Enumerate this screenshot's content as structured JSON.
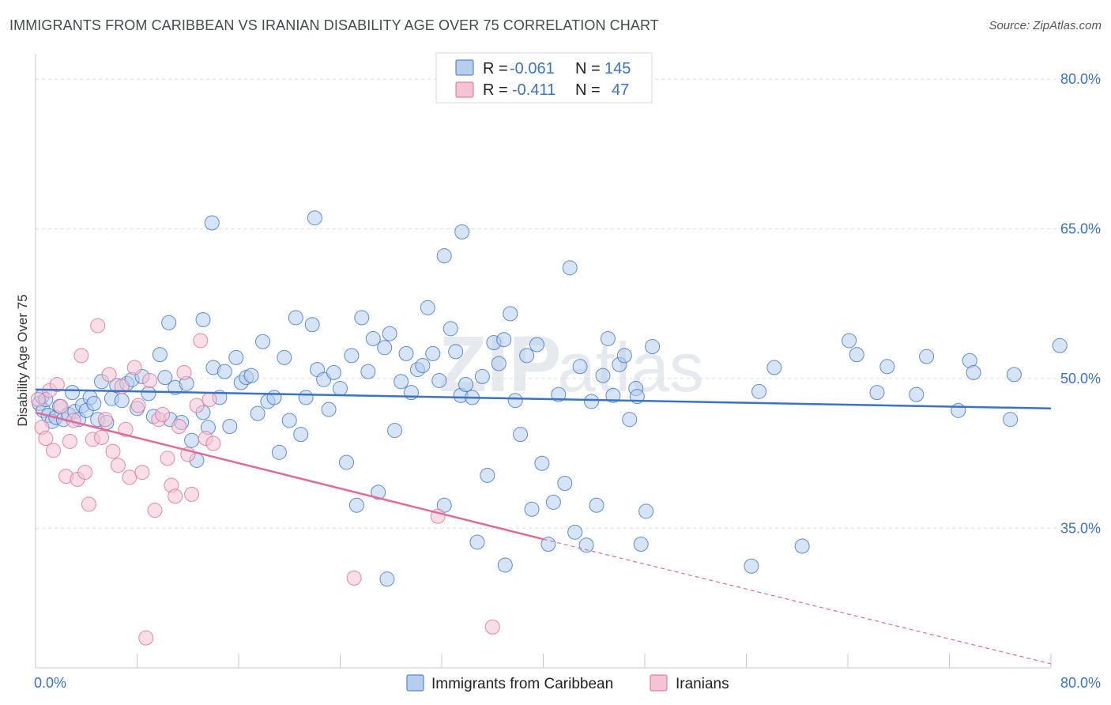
{
  "title": "IMMIGRANTS FROM CARIBBEAN VS IRANIAN DISABILITY AGE OVER 75 CORRELATION CHART",
  "source": "Source: ZipAtlas.com",
  "watermark": {
    "part1": "ZIP",
    "part2": "atlas"
  },
  "colors": {
    "blue": "#3b73c4",
    "pink": "#e06b97",
    "blue_fill": "#b7cdee",
    "pink_fill": "#f5c3d4",
    "grid": "#d9dde3"
  },
  "legend": {
    "rows": [
      {
        "r_label": "R =",
        "r_value": "-0.061",
        "n_label": "N =",
        "n_value": "145",
        "series": "blue"
      },
      {
        "r_label": "R =",
        "r_value": "-0.411",
        "n_label": "N =",
        "n_value": "47",
        "series": "pink"
      }
    ]
  },
  "chart_data": {
    "type": "scatter",
    "title": "IMMIGRANTS FROM CARIBBEAN VS IRANIAN DISABILITY AGE OVER 75 CORRELATION CHART",
    "xlabel": "",
    "ylabel": "Disability Age Over 75",
    "xlim": [
      0,
      80
    ],
    "ylim": [
      21,
      82
    ],
    "x_tick_labels": [
      "0.0%",
      "80.0%"
    ],
    "y_ticks": [
      35,
      50,
      65,
      80
    ],
    "y_tick_labels": [
      "35.0%",
      "50.0%",
      "65.0%",
      "80.0%"
    ],
    "grid": true,
    "legend_position": "top-center",
    "series": [
      {
        "name": "Immigrants from Caribbean",
        "color": "#3b73c4",
        "trend": {
          "x": [
            0,
            80
          ],
          "y": [
            48.9,
            47.0
          ]
        },
        "points": [
          [
            0.3,
            47.5
          ],
          [
            0.5,
            48.2
          ],
          [
            0.6,
            46.8
          ],
          [
            0.8,
            47.9
          ],
          [
            1.0,
            46.3
          ],
          [
            1.3,
            45.7
          ],
          [
            1.6,
            46.1
          ],
          [
            1.9,
            47.2
          ],
          [
            2.2,
            45.9
          ],
          [
            2.6,
            46.4
          ],
          [
            2.9,
            48.6
          ],
          [
            3.1,
            46.7
          ],
          [
            3.4,
            45.9
          ],
          [
            3.7,
            47.3
          ],
          [
            4.0,
            46.8
          ],
          [
            4.3,
            48.1
          ],
          [
            4.6,
            47.5
          ],
          [
            4.9,
            45.9
          ],
          [
            5.2,
            49.7
          ],
          [
            5.6,
            45.6
          ],
          [
            6.0,
            48.0
          ],
          [
            6.4,
            49.3
          ],
          [
            6.8,
            47.8
          ],
          [
            7.2,
            49.5
          ],
          [
            7.6,
            49.9
          ],
          [
            8.0,
            47.0
          ],
          [
            8.4,
            50.2
          ],
          [
            8.9,
            48.5
          ],
          [
            9.3,
            46.2
          ],
          [
            9.8,
            52.4
          ],
          [
            10.2,
            50.1
          ],
          [
            10.6,
            45.9
          ],
          [
            11.0,
            49.1
          ],
          [
            11.5,
            45.6
          ],
          [
            11.9,
            49.5
          ],
          [
            12.3,
            43.8
          ],
          [
            12.7,
            41.8
          ],
          [
            13.2,
            46.6
          ],
          [
            13.6,
            45.1
          ],
          [
            14.0,
            51.1
          ],
          [
            14.5,
            48.1
          ],
          [
            14.9,
            50.7
          ],
          [
            15.3,
            45.2
          ],
          [
            15.8,
            52.1
          ],
          [
            16.2,
            49.6
          ],
          [
            16.6,
            50.1
          ],
          [
            17.0,
            50.3
          ],
          [
            17.5,
            46.5
          ],
          [
            17.9,
            53.7
          ],
          [
            18.3,
            47.7
          ],
          [
            18.8,
            48.1
          ],
          [
            19.2,
            42.6
          ],
          [
            19.6,
            52.1
          ],
          [
            20.0,
            45.8
          ],
          [
            20.5,
            56.1
          ],
          [
            20.9,
            44.4
          ],
          [
            21.3,
            48.1
          ],
          [
            21.8,
            55.4
          ],
          [
            22.2,
            50.9
          ],
          [
            22.7,
            49.9
          ],
          [
            23.1,
            46.9
          ],
          [
            23.5,
            50.6
          ],
          [
            24.0,
            49.0
          ],
          [
            24.5,
            41.6
          ],
          [
            24.9,
            52.3
          ],
          [
            25.3,
            37.3
          ],
          [
            25.7,
            56.1
          ],
          [
            26.2,
            50.7
          ],
          [
            26.6,
            54.0
          ],
          [
            27.0,
            38.6
          ],
          [
            27.5,
            53.1
          ],
          [
            27.9,
            54.5
          ],
          [
            28.3,
            44.8
          ],
          [
            28.8,
            49.7
          ],
          [
            29.2,
            52.5
          ],
          [
            29.6,
            48.6
          ],
          [
            30.1,
            50.9
          ],
          [
            30.5,
            51.3
          ],
          [
            30.9,
            57.1
          ],
          [
            31.3,
            52.5
          ],
          [
            31.8,
            49.8
          ],
          [
            32.2,
            37.3
          ],
          [
            32.7,
            55.0
          ],
          [
            33.1,
            52.7
          ],
          [
            33.5,
            48.3
          ],
          [
            33.9,
            49.4
          ],
          [
            34.4,
            48.1
          ],
          [
            34.8,
            33.6
          ],
          [
            35.2,
            50.2
          ],
          [
            35.6,
            40.3
          ],
          [
            36.1,
            53.6
          ],
          [
            36.5,
            51.5
          ],
          [
            36.9,
            53.9
          ],
          [
            37.4,
            56.5
          ],
          [
            37.8,
            47.8
          ],
          [
            38.2,
            44.4
          ],
          [
            38.7,
            52.3
          ],
          [
            39.1,
            36.9
          ],
          [
            39.5,
            53.4
          ],
          [
            39.9,
            41.5
          ],
          [
            40.4,
            33.4
          ],
          [
            40.8,
            37.6
          ],
          [
            41.2,
            48.4
          ],
          [
            41.7,
            39.5
          ],
          [
            42.1,
            61.1
          ],
          [
            42.5,
            34.6
          ],
          [
            42.9,
            51.2
          ],
          [
            43.4,
            33.3
          ],
          [
            43.8,
            47.7
          ],
          [
            44.2,
            37.3
          ],
          [
            44.7,
            50.3
          ],
          [
            45.1,
            54.0
          ],
          [
            45.5,
            48.3
          ],
          [
            46.0,
            51.4
          ],
          [
            46.4,
            52.3
          ],
          [
            46.8,
            45.9
          ],
          [
            47.3,
            49.0
          ],
          [
            47.7,
            33.4
          ],
          [
            48.1,
            36.7
          ],
          [
            48.6,
            53.2
          ],
          [
            13.9,
            65.6
          ],
          [
            22.0,
            66.1
          ],
          [
            33.6,
            64.7
          ],
          [
            32.2,
            62.3
          ],
          [
            10.5,
            55.6
          ],
          [
            13.2,
            55.9
          ],
          [
            27.7,
            29.9
          ],
          [
            37.0,
            31.3
          ],
          [
            56.4,
            31.2
          ],
          [
            60.4,
            33.2
          ],
          [
            70.2,
            52.2
          ],
          [
            73.6,
            51.8
          ],
          [
            67.1,
            51.2
          ],
          [
            64.1,
            53.8
          ],
          [
            73.9,
            50.6
          ],
          [
            77.1,
            50.4
          ],
          [
            66.3,
            48.6
          ],
          [
            69.4,
            48.4
          ],
          [
            57.0,
            48.7
          ],
          [
            47.4,
            48.2
          ],
          [
            76.8,
            45.9
          ],
          [
            80.7,
            53.3
          ],
          [
            58.2,
            51.1
          ],
          [
            64.7,
            52.4
          ],
          [
            72.7,
            46.8
          ]
        ]
      },
      {
        "name": "Iranians",
        "color": "#e06b97",
        "trend": {
          "x": [
            0,
            40
          ],
          "y": [
            46.6,
            33.9
          ]
        },
        "trend_dashed": {
          "x": [
            40,
            80
          ],
          "y": [
            33.9,
            21.4
          ]
        },
        "points": [
          [
            0.2,
            47.9
          ],
          [
            0.5,
            45.1
          ],
          [
            0.8,
            44.0
          ],
          [
            1.1,
            48.8
          ],
          [
            1.4,
            42.8
          ],
          [
            1.7,
            49.4
          ],
          [
            2.0,
            47.2
          ],
          [
            2.4,
            40.2
          ],
          [
            2.7,
            43.7
          ],
          [
            3.0,
            45.8
          ],
          [
            3.3,
            39.9
          ],
          [
            3.6,
            52.3
          ],
          [
            3.9,
            40.6
          ],
          [
            4.2,
            37.4
          ],
          [
            4.5,
            43.9
          ],
          [
            4.9,
            55.3
          ],
          [
            5.2,
            44.1
          ],
          [
            5.5,
            45.9
          ],
          [
            5.8,
            50.4
          ],
          [
            6.1,
            42.7
          ],
          [
            6.5,
            41.3
          ],
          [
            6.8,
            49.2
          ],
          [
            7.1,
            44.9
          ],
          [
            7.4,
            40.1
          ],
          [
            7.8,
            51.1
          ],
          [
            8.1,
            47.3
          ],
          [
            8.4,
            40.6
          ],
          [
            8.7,
            24.0
          ],
          [
            9.0,
            49.8
          ],
          [
            9.4,
            36.8
          ],
          [
            9.7,
            45.9
          ],
          [
            10.0,
            46.4
          ],
          [
            10.4,
            42.0
          ],
          [
            10.7,
            39.3
          ],
          [
            11.0,
            38.2
          ],
          [
            11.3,
            45.2
          ],
          [
            11.7,
            50.6
          ],
          [
            12.0,
            42.4
          ],
          [
            12.3,
            38.4
          ],
          [
            12.7,
            47.3
          ],
          [
            13.0,
            53.8
          ],
          [
            13.4,
            44.0
          ],
          [
            13.7,
            47.9
          ],
          [
            14.0,
            43.5
          ],
          [
            25.1,
            30.0
          ],
          [
            31.7,
            36.2
          ],
          [
            36.0,
            25.1
          ]
        ]
      }
    ]
  },
  "bottom_legend": {
    "items": [
      {
        "label": "Immigrants from Caribbean",
        "series": "blue"
      },
      {
        "label": "Iranians",
        "series": "pink"
      }
    ]
  }
}
